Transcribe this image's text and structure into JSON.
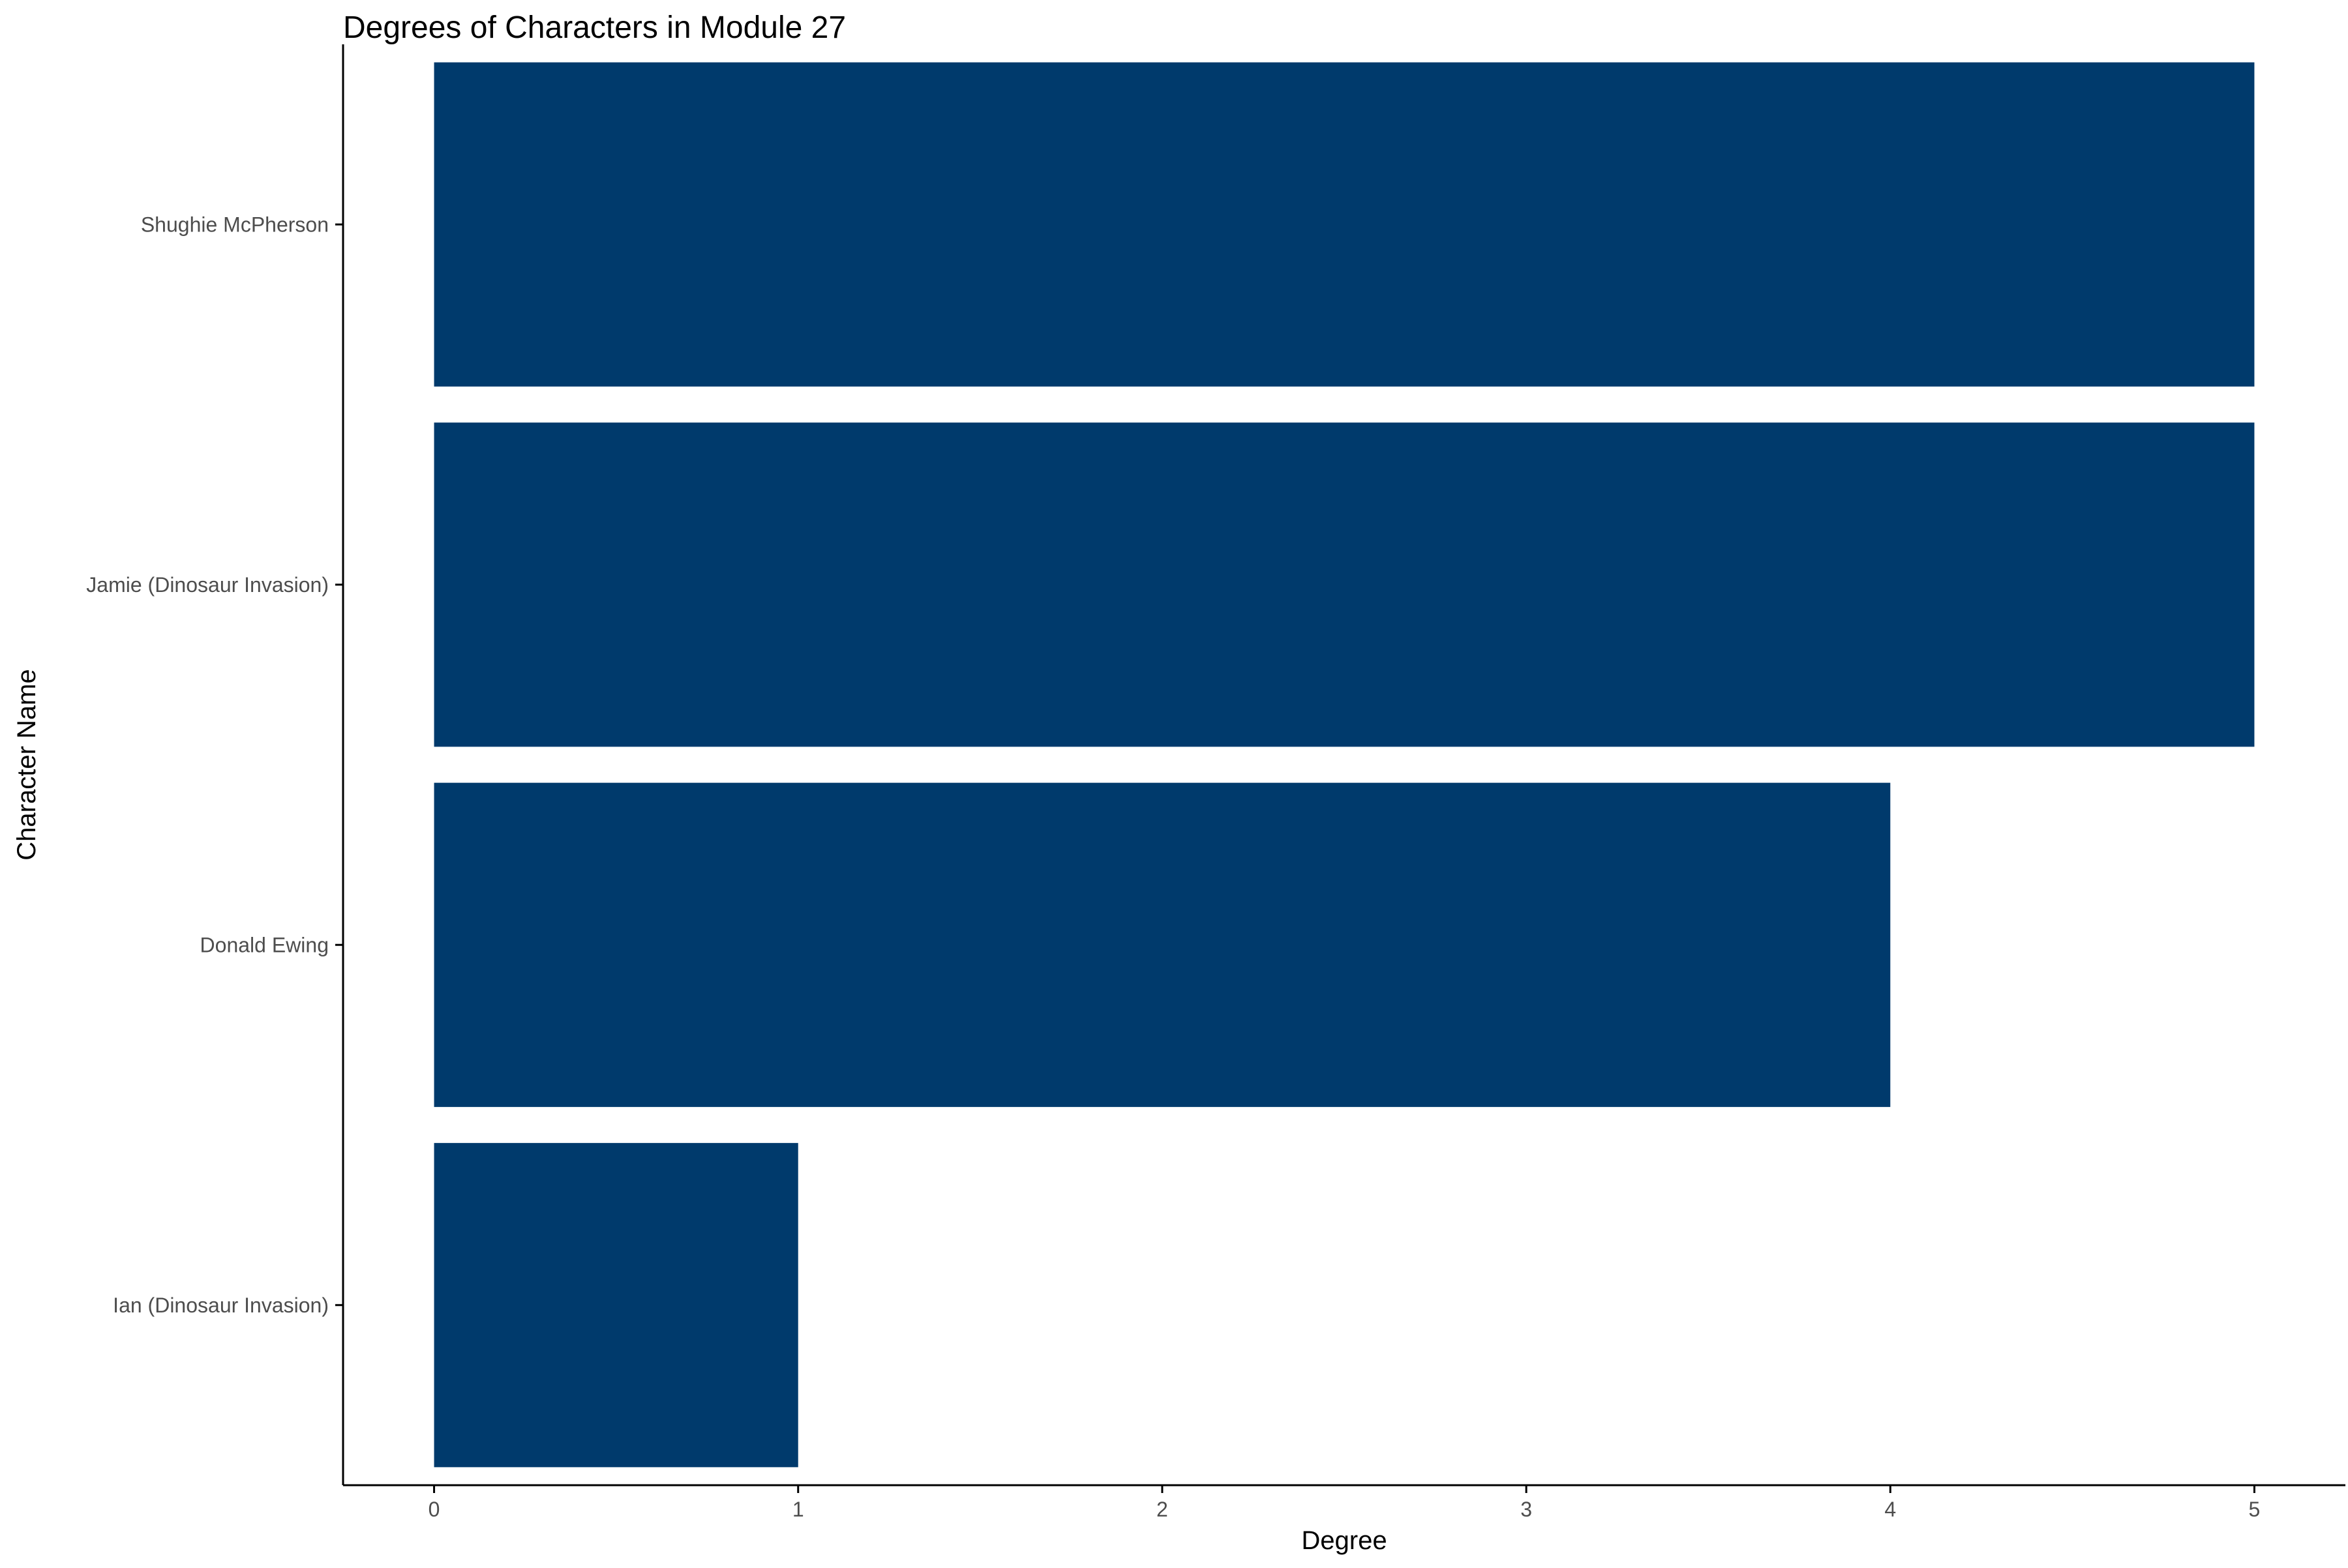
{
  "chart_data": {
    "type": "bar",
    "orientation": "horizontal",
    "title": "Degrees of Characters in Module 27",
    "xlabel": "Degree",
    "ylabel": "Character Name",
    "categories": [
      "Shughie McPherson",
      "Jamie (Dinosaur Invasion)",
      "Donald Ewing",
      "Ian (Dinosaur Invasion)"
    ],
    "values": [
      5,
      5,
      4,
      1
    ],
    "xlim": [
      -0.25,
      5.25
    ],
    "xticks": [
      0,
      1,
      2,
      3,
      4,
      5
    ],
    "grid": false,
    "legend": "none",
    "bar_color": "#003a6c"
  }
}
